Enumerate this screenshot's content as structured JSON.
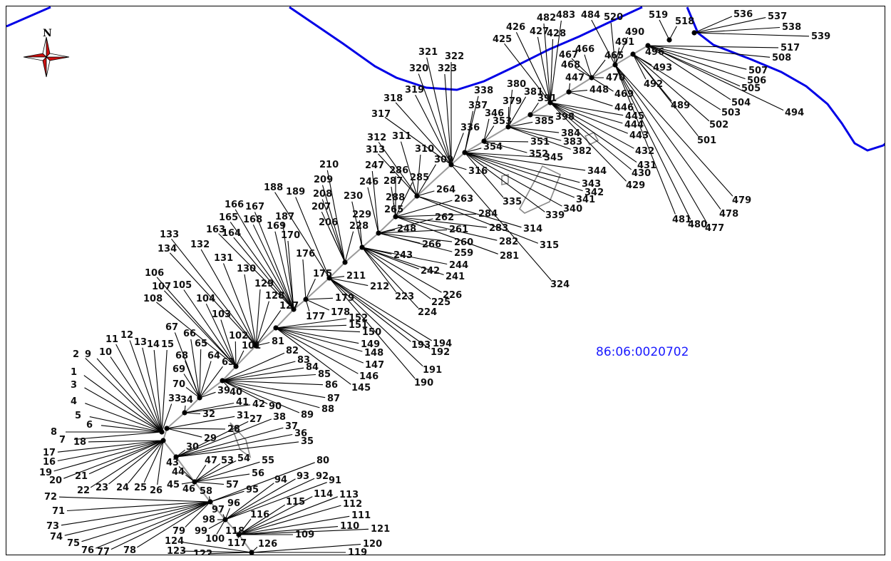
{
  "map": {
    "north_label": "N",
    "cadastral_label": "86:06:0020702",
    "colors": {
      "river": "#0000e6",
      "rays": "#000000",
      "axis": "#9a9a9a",
      "cadastral": "#1a1aff",
      "compass": "#d01010"
    },
    "icons": {
      "compass": "north-arrow-icon"
    }
  },
  "points": {
    "1": [
      98,
      525
    ],
    "2": [
      101,
      500
    ],
    "3": [
      98,
      543
    ],
    "4": [
      98,
      566
    ],
    "5": [
      104,
      586
    ],
    "6": [
      120,
      599
    ],
    "7": [
      82,
      620
    ],
    "8": [
      70,
      609
    ],
    "9": [
      118,
      500
    ],
    "10": [
      138,
      497
    ],
    "11": [
      147,
      479
    ],
    "12": [
      168,
      473
    ],
    "13": [
      187,
      483
    ],
    "14": [
      205,
      486
    ],
    "15": [
      225,
      486
    ],
    "16": [
      59,
      651
    ],
    "17": [
      59,
      638
    ],
    "18": [
      102,
      623
    ],
    "19": [
      54,
      666
    ],
    "20": [
      68,
      677
    ],
    "21": [
      104,
      671
    ],
    "22": [
      107,
      691
    ],
    "23": [
      133,
      687
    ],
    "24": [
      162,
      687
    ],
    "25": [
      187,
      687
    ],
    "26": [
      209,
      691
    ],
    "27": [
      349,
      591
    ],
    "28": [
      318,
      605
    ],
    "29": [
      285,
      618
    ],
    "30": [
      260,
      630
    ],
    "31": [
      331,
      586
    ],
    "32": [
      283,
      584
    ],
    "33": [
      235,
      562
    ],
    "34": [
      252,
      564
    ],
    "35": [
      421,
      622
    ],
    "36": [
      412,
      611
    ],
    "37": [
      399,
      601
    ],
    "38": [
      382,
      588
    ],
    "39": [
      304,
      551
    ],
    "40": [
      321,
      553
    ],
    "41": [
      330,
      567
    ],
    "42": [
      353,
      570
    ],
    "43": [
      232,
      652
    ],
    "44": [
      240,
      665
    ],
    "45": [
      233,
      683
    ],
    "46": [
      255,
      689
    ],
    "47": [
      286,
      649
    ],
    "53": [
      309,
      649
    ],
    "54": [
      332,
      646
    ],
    "55": [
      366,
      649
    ],
    "56": [
      352,
      667
    ],
    "57": [
      316,
      683
    ],
    "58": [
      279,
      692
    ],
    "63": [
      310,
      511
    ],
    "64": [
      290,
      502
    ],
    "65": [
      272,
      485
    ],
    "66": [
      256,
      471
    ],
    "67": [
      231,
      462
    ],
    "68": [
      245,
      502
    ],
    "69": [
      241,
      521
    ],
    "70": [
      241,
      542
    ],
    "71": [
      72,
      720
    ],
    "72": [
      61,
      700
    ],
    "73": [
      64,
      741
    ],
    "74": [
      69,
      756
    ],
    "75": [
      93,
      765
    ],
    "76": [
      113,
      775
    ],
    "77": [
      135,
      777
    ],
    "78": [
      172,
      775
    ],
    "79": [
      241,
      748
    ],
    "80": [
      443,
      649
    ],
    "81": [
      380,
      482
    ],
    "82": [
      400,
      495
    ],
    "83": [
      416,
      508
    ],
    "84": [
      428,
      518
    ],
    "85": [
      445,
      528
    ],
    "86": [
      455,
      543
    ],
    "87": [
      458,
      562
    ],
    "88": [
      450,
      577
    ],
    "89": [
      421,
      585
    ],
    "90": [
      376,
      573
    ],
    "91": [
      460,
      677
    ],
    "92": [
      442,
      671
    ],
    "93": [
      415,
      671
    ],
    "94": [
      384,
      676
    ],
    "95": [
      344,
      690
    ],
    "96": [
      318,
      709
    ],
    "97": [
      296,
      718
    ],
    "98": [
      283,
      732
    ],
    "99": [
      272,
      748
    ],
    "100": [
      287,
      759
    ],
    "101": [
      338,
      488
    ],
    "102": [
      320,
      474
    ],
    "103": [
      296,
      444
    ],
    "104": [
      274,
      422
    ],
    "105": [
      241,
      403
    ],
    "106": [
      202,
      386
    ],
    "107": [
      212,
      405
    ],
    "108": [
      200,
      422
    ],
    "109": [
      413,
      753
    ],
    "110": [
      476,
      741
    ],
    "111": [
      492,
      726
    ],
    "112": [
      480,
      710
    ],
    "113": [
      475,
      697
    ],
    "114": [
      439,
      696
    ],
    "115": [
      400,
      707
    ],
    "116": [
      350,
      725
    ],
    "117": [
      318,
      765
    ],
    "118": [
      315,
      748
    ],
    "119": [
      487,
      778
    ],
    "120": [
      508,
      766
    ],
    "121": [
      519,
      745
    ],
    "122": [
      270,
      780
    ],
    "123": [
      233,
      776
    ],
    "124": [
      230,
      762
    ],
    "126": [
      361,
      766
    ],
    "127": [
      391,
      432
    ],
    "128": [
      371,
      418
    ],
    "129": [
      356,
      401
    ],
    "130": [
      331,
      380
    ],
    "131": [
      299,
      365
    ],
    "132": [
      266,
      346
    ],
    "133": [
      223,
      332
    ],
    "134": [
      220,
      352
    ],
    "145": [
      492,
      547
    ],
    "146": [
      503,
      531
    ],
    "147": [
      511,
      515
    ],
    "148": [
      510,
      498
    ],
    "149": [
      505,
      486
    ],
    "150": [
      507,
      469
    ],
    "151": [
      488,
      459
    ],
    "152": [
      488,
      449
    ],
    "163": [
      288,
      325
    ],
    "164": [
      310,
      330
    ],
    "165": [
      306,
      308
    ],
    "166": [
      314,
      290
    ],
    "167": [
      343,
      293
    ],
    "168": [
      340,
      311
    ],
    "169": [
      373,
      320
    ],
    "170": [
      393,
      333
    ],
    "175": [
      438,
      387
    ],
    "176": [
      414,
      359
    ],
    "177": [
      428,
      447
    ],
    "178": [
      463,
      441
    ],
    "179": [
      469,
      421
    ],
    "187": [
      385,
      307
    ],
    "188": [
      369,
      266
    ],
    "189": [
      400,
      272
    ],
    "190": [
      580,
      540
    ],
    "191": [
      592,
      522
    ],
    "192": [
      603,
      497
    ],
    "193": [
      576,
      487
    ],
    "194": [
      606,
      485
    ],
    "206": [
      446,
      315
    ],
    "207": [
      436,
      293
    ],
    "208": [
      438,
      275
    ],
    "209": [
      439,
      255
    ],
    "210": [
      447,
      234
    ],
    "211": [
      485,
      390
    ],
    "212": [
      518,
      405
    ],
    "223": [
      553,
      419
    ],
    "224": [
      585,
      441
    ],
    "225": [
      604,
      427
    ],
    "226": [
      620,
      417
    ],
    "228": [
      489,
      320
    ],
    "229": [
      493,
      304
    ],
    "230": [
      481,
      278
    ],
    "241": [
      624,
      391
    ],
    "242": [
      589,
      383
    ],
    "243": [
      551,
      361
    ],
    "244": [
      629,
      375
    ],
    "246": [
      503,
      258
    ],
    "247": [
      511,
      235
    ],
    "248": [
      556,
      324
    ],
    "259": [
      636,
      358
    ],
    "260": [
      636,
      343
    ],
    "261": [
      629,
      325
    ],
    "262": [
      609,
      308
    ],
    "263": [
      636,
      282
    ],
    "264": [
      611,
      269
    ],
    "265": [
      538,
      297
    ],
    "266": [
      591,
      346
    ],
    "281": [
      700,
      362
    ],
    "282": [
      699,
      342
    ],
    "283": [
      685,
      323
    ],
    "284": [
      670,
      303
    ],
    "285": [
      574,
      252
    ],
    "286": [
      545,
      242
    ],
    "287": [
      537,
      257
    ],
    "288": [
      540,
      280
    ],
    "309": [
      608,
      227
    ],
    "310": [
      581,
      212
    ],
    "311": [
      549,
      194
    ],
    "312": [
      514,
      196
    ],
    "313": [
      512,
      213
    ],
    "314": [
      733,
      324
    ],
    "315": [
      756,
      347
    ],
    "316": [
      656,
      243
    ],
    "317": [
      520,
      163
    ],
    "318": [
      537,
      141
    ],
    "319": [
      567,
      129
    ],
    "320": [
      573,
      99
    ],
    "321": [
      586,
      76
    ],
    "322": [
      623,
      82
    ],
    "323": [
      613,
      99
    ],
    "324": [
      771,
      402
    ],
    "335": [
      704,
      286
    ],
    "336": [
      645,
      182
    ],
    "337": [
      656,
      151
    ],
    "338": [
      664,
      130
    ],
    "339": [
      764,
      305
    ],
    "340": [
      789,
      296
    ],
    "341": [
      807,
      283
    ],
    "342": [
      819,
      273
    ],
    "343": [
      815,
      261
    ],
    "344": [
      823,
      243
    ],
    "345": [
      762,
      224
    ],
    "346": [
      679,
      162
    ],
    "351": [
      743,
      202
    ],
    "352": [
      741,
      219
    ],
    "353": [
      690,
      173
    ],
    "354": [
      677,
      209
    ],
    "379": [
      704,
      145
    ],
    "380": [
      710,
      121
    ],
    "381": [
      734,
      132
    ],
    "382": [
      802,
      215
    ],
    "383": [
      789,
      202
    ],
    "384": [
      786,
      190
    ],
    "385": [
      749,
      173
    ],
    "391": [
      753,
      141
    ],
    "398": [
      778,
      167
    ],
    "425": [
      690,
      58
    ],
    "426": [
      709,
      41
    ],
    "427": [
      742,
      47
    ],
    "428": [
      766,
      50
    ],
    "429": [
      877,
      263
    ],
    "430": [
      885,
      246
    ],
    "431": [
      893,
      235
    ],
    "432": [
      890,
      215
    ],
    "443": [
      882,
      193
    ],
    "444": [
      875,
      178
    ],
    "445": [
      876,
      166
    ],
    "446": [
      861,
      154
    ],
    "447": [
      792,
      112
    ],
    "448": [
      826,
      129
    ],
    "465": [
      847,
      81
    ],
    "466": [
      806,
      72
    ],
    "467": [
      783,
      80
    ],
    "468": [
      786,
      94
    ],
    "469": [
      861,
      135
    ],
    "470": [
      849,
      112
    ],
    "477": [
      988,
      323
    ],
    "478": [
      1008,
      303
    ],
    "479": [
      1026,
      284
    ],
    "480": [
      964,
      318
    ],
    "481": [
      942,
      311
    ],
    "482": [
      752,
      28
    ],
    "483": [
      779,
      24
    ],
    "484": [
      814,
      24
    ],
    "489": [
      940,
      151
    ],
    "490": [
      876,
      48
    ],
    "491": [
      862,
      62
    ],
    "492": [
      902,
      121
    ],
    "493": [
      915,
      98
    ],
    "494": [
      1100,
      161
    ],
    "496": [
      904,
      76
    ],
    "501": [
      977,
      200
    ],
    "502": [
      994,
      178
    ],
    "503": [
      1011,
      161
    ],
    "504": [
      1025,
      147
    ],
    "505": [
      1039,
      127
    ],
    "506": [
      1047,
      116
    ],
    "507": [
      1049,
      102
    ],
    "508": [
      1082,
      84
    ],
    "517": [
      1094,
      70
    ],
    "518": [
      946,
      33
    ],
    "519": [
      909,
      24
    ],
    "520": [
      846,
      27
    ],
    "536": [
      1028,
      23
    ],
    "537": [
      1076,
      26
    ],
    "538": [
      1096,
      41
    ],
    "539": [
      1137,
      54
    ]
  },
  "clusters": [
    {
      "node": [
        226,
        605
      ],
      "labels": [
        "1",
        "2",
        "3",
        "4",
        "5",
        "6",
        "7",
        "8",
        "9",
        "10",
        "11",
        "12",
        "13",
        "14",
        "15",
        "33"
      ]
    },
    {
      "node": [
        228,
        617
      ],
      "labels": [
        "16",
        "17",
        "18",
        "19",
        "20",
        "21",
        "22",
        "23",
        "24",
        "25",
        "26"
      ]
    },
    {
      "node": [
        233,
        600
      ],
      "labels": [
        "28",
        "29",
        "31"
      ]
    },
    {
      "node": [
        246,
        640
      ],
      "labels": [
        "30",
        "27",
        "38",
        "37",
        "36",
        "35"
      ]
    },
    {
      "node": [
        258,
        578
      ],
      "labels": [
        "32",
        "34",
        "41",
        "42"
      ]
    },
    {
      "node": [
        272,
        675
      ],
      "labels": [
        "43",
        "44",
        "45",
        "46",
        "47",
        "53",
        "54",
        "55",
        "56",
        "57"
      ]
    },
    {
      "node": [
        279,
        557
      ],
      "labels": [
        "39",
        "63",
        "64",
        "65",
        "66",
        "67",
        "68",
        "69",
        "70"
      ]
    },
    {
      "node": [
        311,
        533
      ],
      "labels": [
        "40",
        "82",
        "83",
        "84",
        "85",
        "86",
        "87",
        "88",
        "89",
        "90"
      ]
    },
    {
      "node": [
        294,
        703
      ],
      "labels": [
        "58",
        "71",
        "72",
        "73",
        "74",
        "75",
        "76",
        "77",
        "78",
        "79",
        "80",
        "95"
      ]
    },
    {
      "node": [
        315,
        728
      ],
      "labels": [
        "96",
        "97",
        "98",
        "99",
        "91",
        "92",
        "93",
        "94",
        "100"
      ]
    },
    {
      "node": [
        334,
        749
      ],
      "labels": [
        "116",
        "118",
        "117",
        "109",
        "110",
        "111",
        "112",
        "113",
        "114",
        "115",
        "121"
      ]
    },
    {
      "node": [
        352,
        774
      ],
      "labels": [
        "122",
        "123",
        "124",
        "126",
        "119",
        "120"
      ]
    },
    {
      "node": [
        330,
        513
      ],
      "labels": [
        "101",
        "102",
        "103",
        "104",
        "105",
        "106",
        "107",
        "108"
      ]
    },
    {
      "node": [
        358,
        484
      ],
      "labels": [
        "81",
        "127",
        "128",
        "129",
        "130",
        "131",
        "132",
        "133",
        "134"
      ]
    },
    {
      "node": [
        386,
        459
      ],
      "labels": [
        "145",
        "146",
        "147",
        "148",
        "149",
        "150",
        "151",
        "152"
      ]
    },
    {
      "node": [
        411,
        433
      ],
      "labels": [
        "163",
        "164",
        "165",
        "166",
        "167",
        "168",
        "169",
        "170",
        "187"
      ]
    },
    {
      "node": [
        428,
        419
      ],
      "labels": [
        "176",
        "177",
        "178",
        "179",
        "175"
      ]
    },
    {
      "node": [
        461,
        389
      ],
      "labels": [
        "188",
        "189",
        "190",
        "191",
        "192",
        "193",
        "194",
        "211",
        "212"
      ]
    },
    {
      "node": [
        483,
        367
      ],
      "labels": [
        "206",
        "207",
        "208",
        "209",
        "210",
        "228"
      ]
    },
    {
      "node": [
        507,
        346
      ],
      "labels": [
        "223",
        "224",
        "225",
        "226",
        "229",
        "230",
        "241",
        "242",
        "243",
        "244"
      ]
    },
    {
      "node": [
        530,
        326
      ],
      "labels": [
        "246",
        "247",
        "248",
        "259",
        "260",
        "261",
        "262",
        "266"
      ]
    },
    {
      "node": [
        554,
        303
      ],
      "labels": [
        "265",
        "285",
        "286",
        "287",
        "288",
        "281",
        "282",
        "283",
        "284",
        "263"
      ]
    },
    {
      "node": [
        584,
        274
      ],
      "labels": [
        "264",
        "309",
        "310",
        "311",
        "312",
        "313",
        "314",
        "315"
      ]
    },
    {
      "node": [
        632,
        230
      ],
      "labels": [
        "316",
        "317",
        "318",
        "319",
        "320",
        "321",
        "322",
        "323",
        "336",
        "324"
      ]
    },
    {
      "node": [
        651,
        213
      ],
      "labels": [
        "337",
        "338",
        "339",
        "340",
        "341",
        "342",
        "343",
        "344",
        "345",
        "335",
        "354"
      ]
    },
    {
      "node": [
        678,
        197
      ],
      "labels": [
        "346",
        "351",
        "352",
        "353"
      ]
    },
    {
      "node": [
        712,
        177
      ],
      "labels": [
        "379",
        "380",
        "381",
        "382",
        "383",
        "384",
        "385"
      ]
    },
    {
      "node": [
        743,
        160
      ],
      "labels": [
        "391",
        "398"
      ]
    },
    {
      "node": [
        771,
        143
      ],
      "labels": [
        "425",
        "426",
        "427",
        "428",
        "429",
        "430",
        "431",
        "432",
        "443",
        "444",
        "445",
        "482",
        "483"
      ]
    },
    {
      "node": [
        797,
        128
      ],
      "labels": [
        "446",
        "447",
        "448"
      ]
    },
    {
      "node": [
        829,
        108
      ],
      "labels": [
        "465",
        "466",
        "467",
        "468",
        "469",
        "470"
      ]
    },
    {
      "node": [
        862,
        90
      ],
      "labels": [
        "484",
        "520",
        "477",
        "478",
        "479",
        "480",
        "481",
        "490",
        "491"
      ]
    },
    {
      "node": [
        887,
        75
      ],
      "labels": [
        "489",
        "492",
        "493",
        "501",
        "502",
        "503"
      ]
    },
    {
      "node": [
        908,
        63
      ],
      "labels": [
        "494",
        "496",
        "504",
        "505",
        "506",
        "507",
        "508",
        "517"
      ]
    },
    {
      "node": [
        938,
        55
      ],
      "labels": [
        "518",
        "519"
      ]
    },
    {
      "node": [
        973,
        45
      ],
      "labels": [
        "536",
        "537",
        "538",
        "539"
      ]
    }
  ]
}
